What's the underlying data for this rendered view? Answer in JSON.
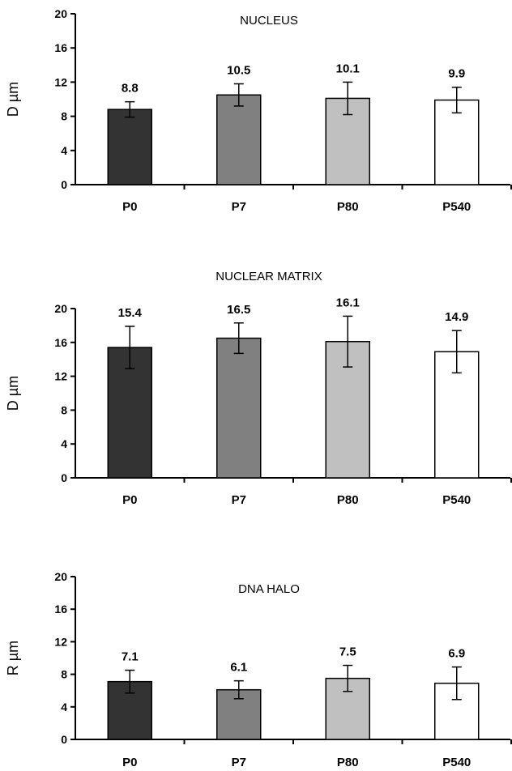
{
  "chart_data": [
    {
      "type": "bar",
      "title": "NUCLEUS",
      "ylabel": "D µm",
      "ylim": [
        0,
        20
      ],
      "yticks": [
        0,
        4,
        8,
        12,
        16,
        20
      ],
      "categories": [
        "P0",
        "P7",
        "P80",
        "P540"
      ],
      "values": [
        8.8,
        10.5,
        10.1,
        9.9
      ],
      "value_labels": [
        "8.8",
        "10.5",
        "10.1",
        "9.9"
      ],
      "errors": [
        0.9,
        1.3,
        1.9,
        1.5
      ],
      "colors": [
        "#333333",
        "#808080",
        "#c0c0c0",
        "#ffffff"
      ]
    },
    {
      "type": "bar",
      "title": "NUCLEAR MATRIX",
      "ylabel": "D µm",
      "ylim": [
        0,
        20
      ],
      "yticks": [
        0,
        4,
        8,
        12,
        16,
        20
      ],
      "categories": [
        "P0",
        "P7",
        "P80",
        "P540"
      ],
      "values": [
        15.4,
        16.5,
        16.1,
        14.9
      ],
      "value_labels": [
        "15.4",
        "16.5",
        "16.1",
        "14.9"
      ],
      "errors": [
        2.5,
        1.8,
        3.0,
        2.5
      ],
      "colors": [
        "#333333",
        "#808080",
        "#c0c0c0",
        "#ffffff"
      ]
    },
    {
      "type": "bar",
      "title": "DNA HALO",
      "ylabel": "R µm",
      "ylim": [
        0,
        20
      ],
      "yticks": [
        0,
        4,
        8,
        12,
        16,
        20
      ],
      "categories": [
        "P0",
        "P7",
        "P80",
        "P540"
      ],
      "values": [
        7.1,
        6.1,
        7.5,
        6.9
      ],
      "value_labels": [
        "7.1",
        "6.1",
        "7.5",
        "6.9"
      ],
      "errors": [
        1.4,
        1.1,
        1.6,
        2.0
      ],
      "colors": [
        "#333333",
        "#808080",
        "#c0c0c0",
        "#ffffff"
      ]
    }
  ]
}
